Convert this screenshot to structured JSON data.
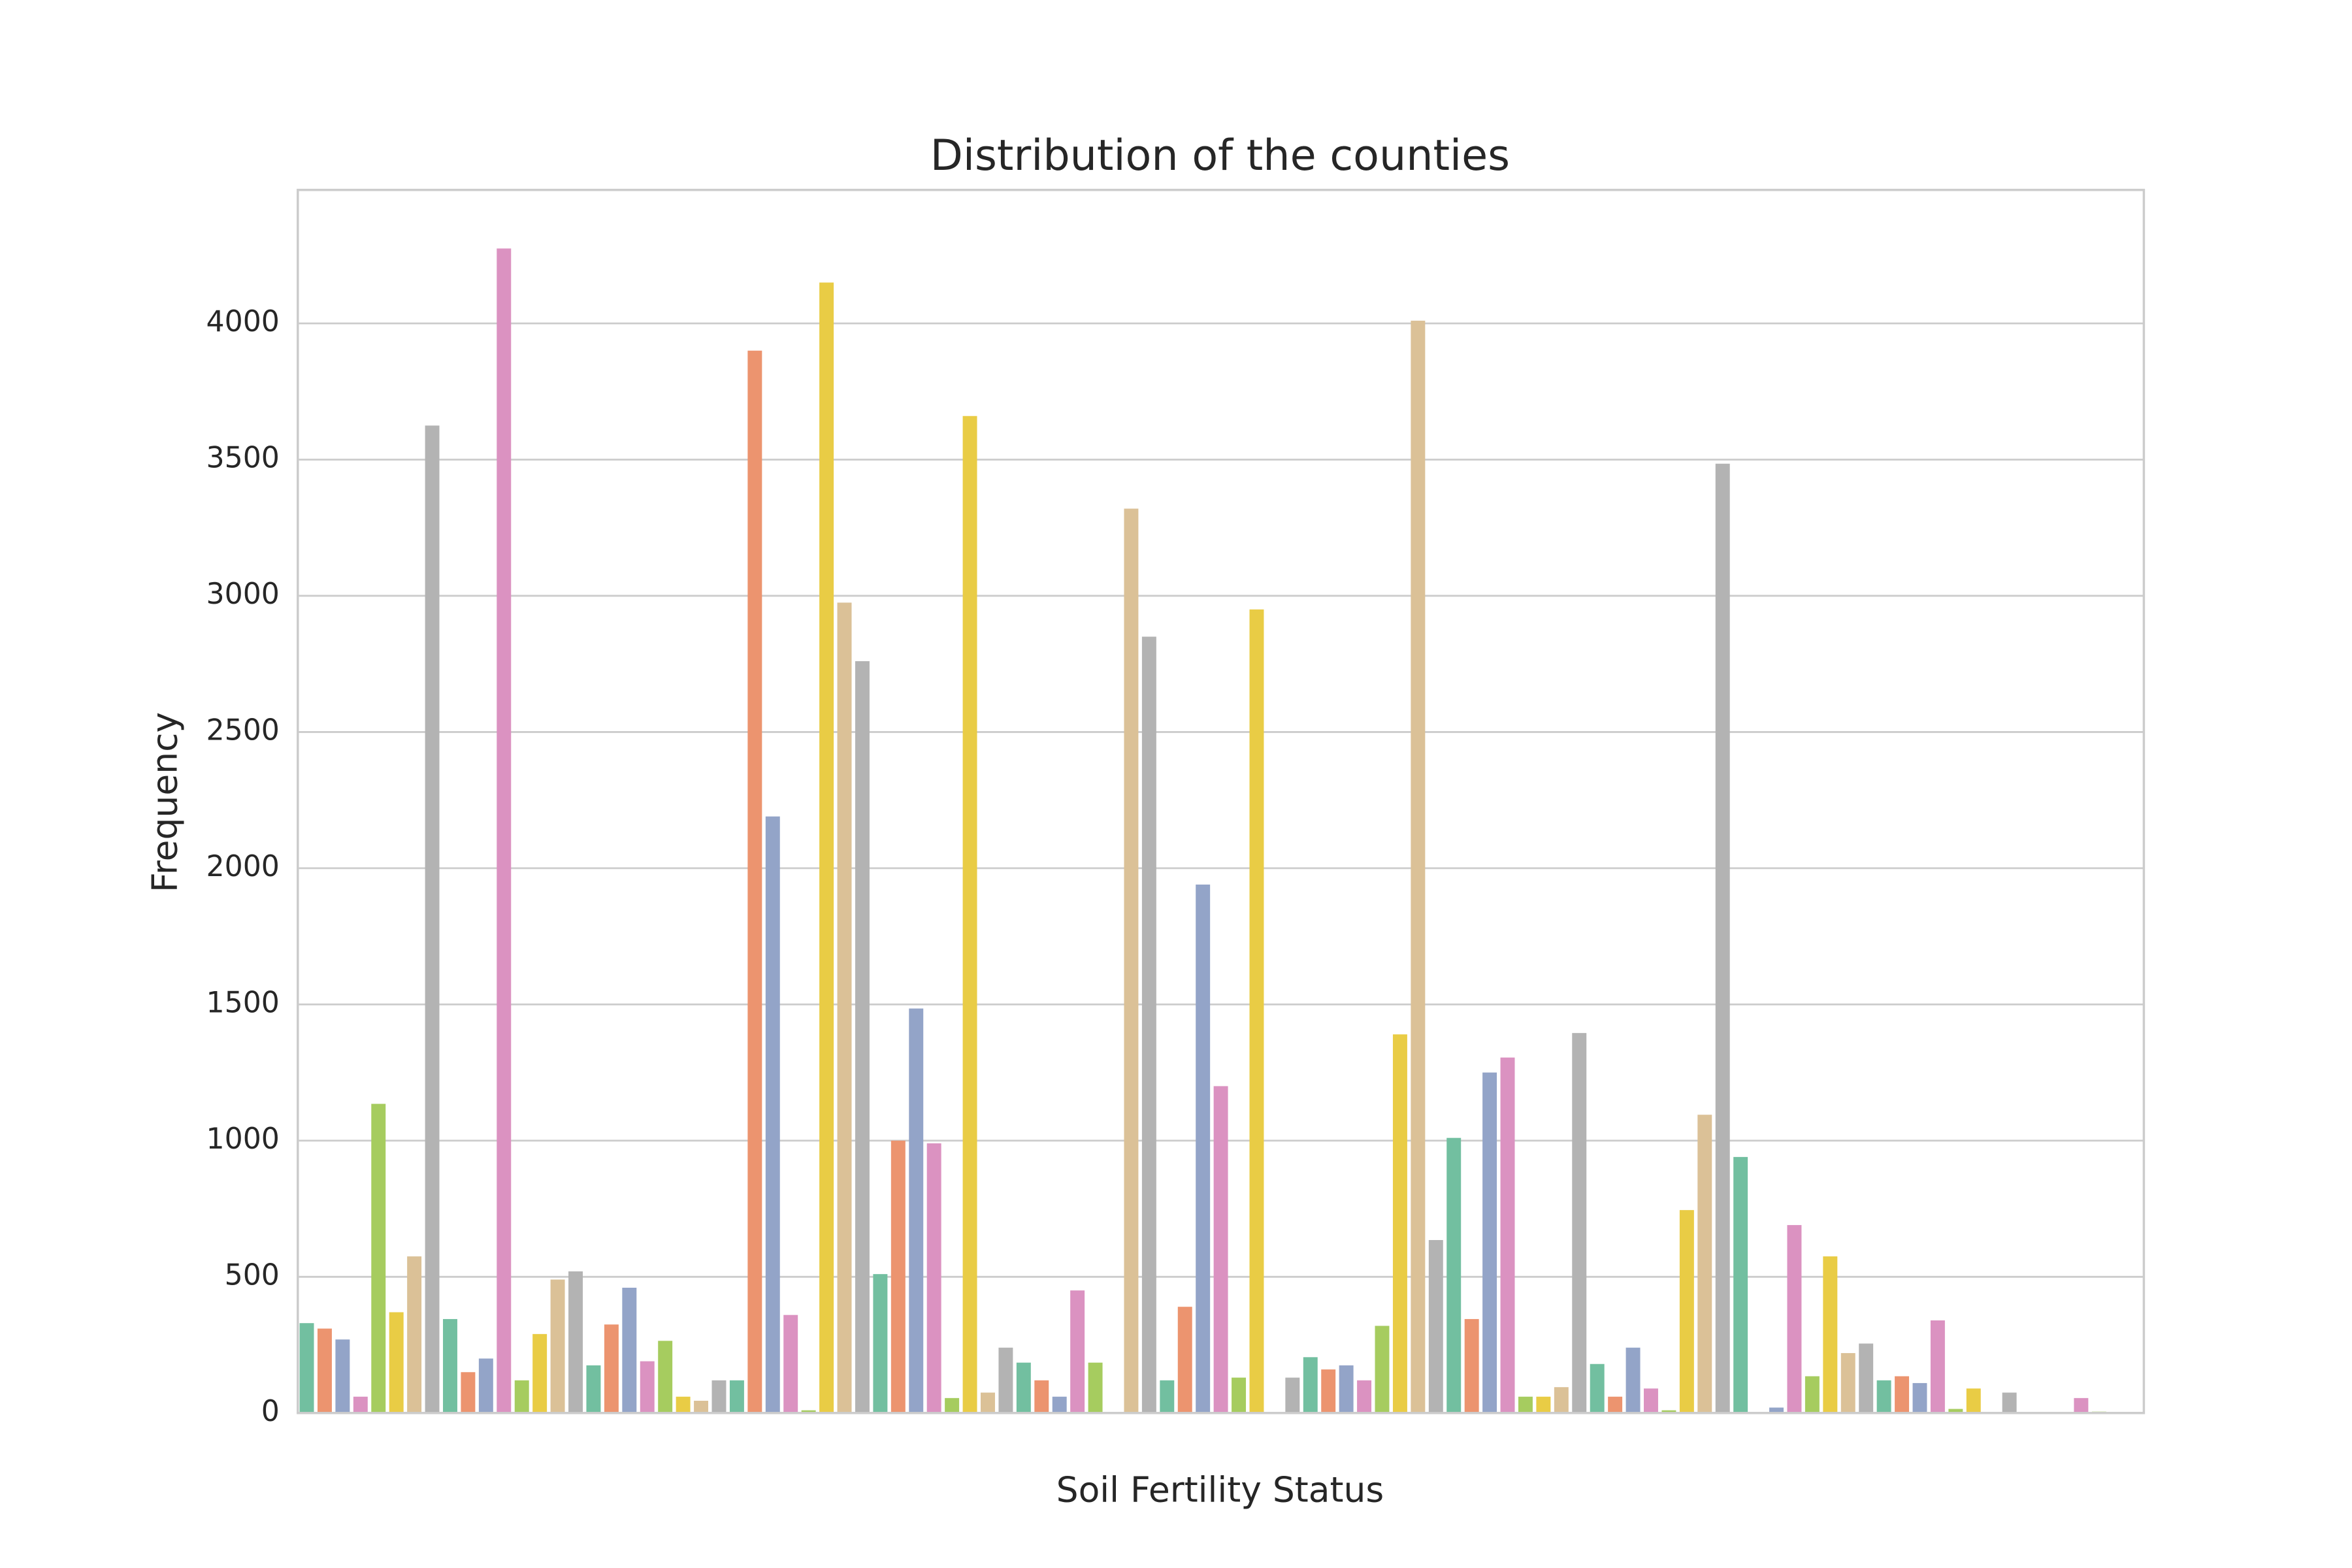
{
  "chart_data": {
    "type": "bar",
    "title": "Distribution of the counties",
    "x_label": "Soil Fertility Status",
    "y_label": "Frequency",
    "categories": [
      null,
      null,
      null,
      null,
      null,
      null,
      null,
      null,
      null,
      null,
      null,
      null,
      null,
      null,
      null,
      null,
      null,
      null,
      null,
      null,
      null,
      null,
      null,
      null,
      null,
      null,
      null,
      null,
      null,
      null,
      null,
      null,
      null,
      null,
      null,
      null,
      null,
      null,
      null,
      null,
      null,
      null,
      null,
      null,
      null,
      null,
      null,
      null,
      null,
      null,
      null,
      null,
      null,
      null,
      null,
      null,
      null,
      null,
      null,
      null,
      null,
      null,
      null,
      null,
      null,
      null,
      null,
      null,
      null,
      null,
      null,
      null,
      null,
      null,
      null,
      null,
      null,
      null,
      null,
      null,
      null,
      null,
      null,
      null,
      null,
      null,
      null,
      null,
      null,
      null,
      null,
      null,
      null,
      null,
      null,
      null,
      null,
      null,
      null,
      null,
      null,
      null,
      null
    ],
    "values": [
      330,
      310,
      270,
      60,
      1135,
      370,
      575,
      3625,
      345,
      150,
      200,
      4275,
      120,
      290,
      490,
      520,
      175,
      325,
      460,
      190,
      265,
      60,
      45,
      120,
      120,
      3900,
      2190,
      360,
      10,
      4150,
      2975,
      2760,
      510,
      1000,
      1485,
      990,
      55,
      3660,
      75,
      240,
      185,
      120,
      60,
      450,
      185,
      0,
      3320,
      2850,
      120,
      390,
      1940,
      1200,
      130,
      2950,
      0,
      130,
      205,
      160,
      175,
      120,
      320,
      1390,
      4010,
      635,
      1010,
      345,
      1250,
      1305,
      60,
      60,
      95,
      1395,
      180,
      60,
      240,
      90,
      10,
      745,
      1095,
      3485,
      940,
      0,
      20,
      690,
      135,
      575,
      220,
      255,
      120,
      135,
      110,
      340,
      15,
      90,
      0,
      75,
      0,
      0,
      0,
      55,
      5,
      0,
      0
    ],
    "colors": [
      "#72bfa0",
      "#ec946f",
      "#93a4c8",
      "#db92c1",
      "#a6cc5f",
      "#e9cc45",
      "#dbc197",
      "#b3b3b3"
    ],
    "ylim": [
      0,
      4490
    ],
    "yticks": [
      0,
      500,
      1000,
      1500,
      2000,
      2500,
      3000,
      3500,
      4000
    ],
    "grid": true
  }
}
